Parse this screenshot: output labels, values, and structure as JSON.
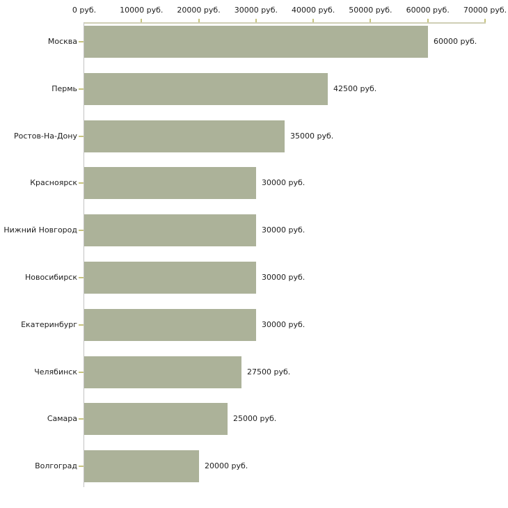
{
  "chart_data": {
    "type": "bar",
    "orientation": "horizontal",
    "title": "",
    "xlabel": "",
    "ylabel": "",
    "categories": [
      "Москва",
      "Пермь",
      "Ростов-На-Дону",
      "Красноярск",
      "Нижний Новгород",
      "Новосибирск",
      "Екатеринбург",
      "Челябинск",
      "Самара",
      "Волгоград"
    ],
    "values": [
      60000,
      42500,
      35000,
      30000,
      30000,
      30000,
      30000,
      27500,
      25000,
      20000
    ],
    "value_labels": [
      "60000 руб.",
      "42500 руб.",
      "35000 руб.",
      "30000 руб.",
      "30000 руб.",
      "30000 руб.",
      "30000 руб.",
      "27500 руб.",
      "25000 руб.",
      "20000 руб."
    ],
    "x_tick_values": [
      0,
      10000,
      20000,
      30000,
      40000,
      50000,
      60000,
      70000
    ],
    "x_tick_labels": [
      "0 руб.",
      "10000 руб.",
      "20000 руб.",
      "30000 руб.",
      "40000 руб.",
      "50000 руб.",
      "60000 руб.",
      "70000 руб."
    ],
    "xlim": [
      0,
      70000
    ],
    "grid": false,
    "legend": false,
    "unit": "руб.",
    "colors": {
      "bar": "#acb299",
      "x_axis_line": "#cfceb5",
      "y_axis_line": "#c2c2c2",
      "tick_mark": "#c6c37e",
      "text": "#1c1c1c",
      "background": "#ffffff"
    }
  }
}
